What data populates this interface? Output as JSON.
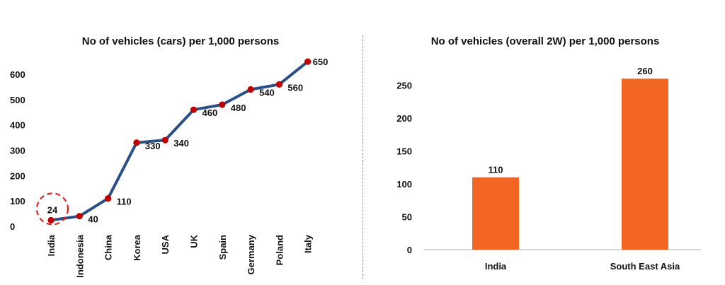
{
  "chart_data": [
    {
      "type": "line",
      "title": "No of vehicles (cars) per 1,000 persons",
      "categories": [
        "India",
        "Indonesia",
        "China",
        "Korea",
        "USA",
        "UK",
        "Spain",
        "Germany",
        "Poland",
        "Italy"
      ],
      "series": [
        {
          "values": [
            24,
            40,
            110,
            330,
            340,
            460,
            480,
            540,
            560,
            650
          ]
        }
      ],
      "data_labels": [
        "24",
        "40",
        "110",
        "330",
        "340",
        "460",
        "480",
        "540",
        "560",
        "650"
      ],
      "yticks": [
        0,
        100,
        200,
        300,
        400,
        500,
        600
      ],
      "ylim": [
        0,
        650
      ],
      "grid": false,
      "highlight_category": "India",
      "line_color": "#2c4e86",
      "marker_color": "#c00000",
      "highlight_color": "#e02020"
    },
    {
      "type": "bar",
      "title": "No of vehicles (overall 2W) per 1,000 persons",
      "categories": [
        "India",
        "South East Asia"
      ],
      "values": [
        110,
        260
      ],
      "data_labels": [
        "110",
        "260"
      ],
      "yticks": [
        0,
        50,
        100,
        150,
        200,
        250
      ],
      "ylim": [
        0,
        260
      ],
      "grid": false,
      "bar_color": "#f26522"
    }
  ]
}
